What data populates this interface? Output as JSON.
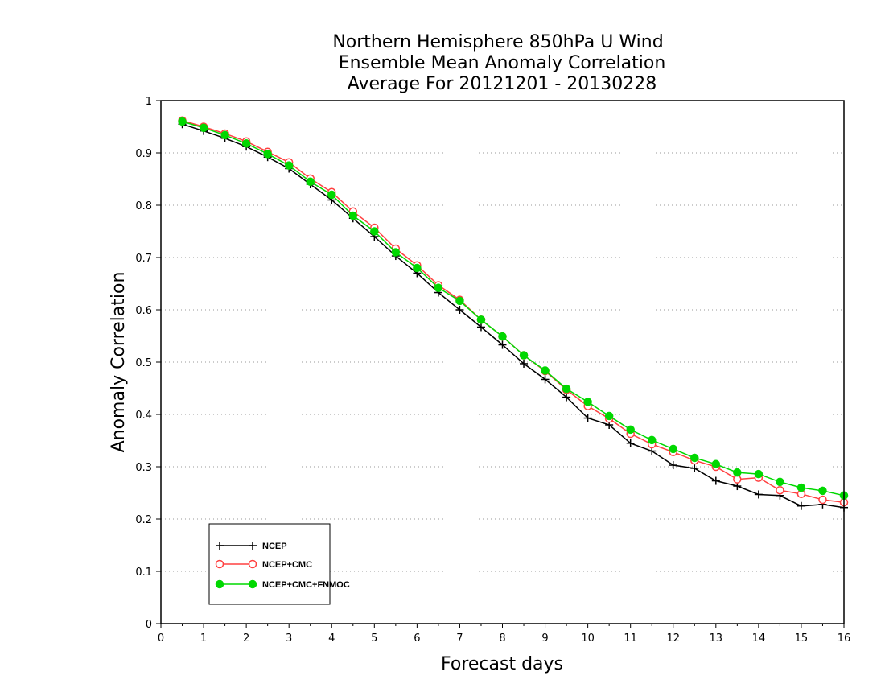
{
  "chart_data": {
    "type": "line",
    "title": [
      "Northern Hemisphere 850hPa U Wind",
      "Ensemble Mean Anomaly Correlation",
      "Average For 20121201 - 20130228"
    ],
    "xlabel": "Forecast days",
    "ylabel": "Anomaly Correlation",
    "xlim": [
      0,
      16
    ],
    "ylim": [
      0,
      1
    ],
    "x_ticks": [
      "0",
      "1",
      "2",
      "3",
      "4",
      "5",
      "6",
      "7",
      "8",
      "9",
      "10",
      "11",
      "12",
      "13",
      "14",
      "15",
      "16"
    ],
    "y_ticks": [
      "0",
      "0.1",
      "0.2",
      "0.3",
      "0.4",
      "0.5",
      "0.6",
      "0.7",
      "0.8",
      "0.9",
      "1"
    ],
    "grid": "horizontal-dotted",
    "legend_placement": "bottom-left",
    "x": [
      0.5,
      1,
      1.5,
      2,
      2.5,
      3,
      3.5,
      4,
      4.5,
      5,
      5.5,
      6,
      6.5,
      7,
      7.5,
      8,
      8.5,
      9,
      9.5,
      10,
      10.5,
      11,
      11.5,
      12,
      12.5,
      13,
      13.5,
      14,
      14.5,
      15,
      15.5,
      16
    ],
    "series": [
      {
        "name": "NCEP",
        "color": "#000000",
        "marker": "plus",
        "values": [
          0.955,
          0.942,
          0.928,
          0.912,
          0.892,
          0.87,
          0.84,
          0.81,
          0.775,
          0.74,
          0.703,
          0.67,
          0.633,
          0.6,
          0.567,
          0.533,
          0.497,
          0.467,
          0.433,
          0.393,
          0.38,
          0.345,
          0.33,
          0.303,
          0.297,
          0.273,
          0.263,
          0.247,
          0.245,
          0.225,
          0.228,
          0.222
        ]
      },
      {
        "name": "NCEP+CMC",
        "color": "#ff4040",
        "marker": "open-circle",
        "values": [
          0.962,
          0.95,
          0.937,
          0.922,
          0.902,
          0.882,
          0.851,
          0.825,
          0.788,
          0.757,
          0.717,
          0.685,
          0.647,
          0.619,
          0.581,
          0.549,
          0.513,
          0.483,
          0.447,
          0.416,
          0.392,
          0.363,
          0.343,
          0.328,
          0.312,
          0.3,
          0.276,
          0.279,
          0.255,
          0.248,
          0.237,
          0.232
        ]
      },
      {
        "name": "NCEP+CMC+FNMOC",
        "color": "#00d800",
        "marker": "filled-circle",
        "values": [
          0.96,
          0.948,
          0.934,
          0.918,
          0.898,
          0.876,
          0.845,
          0.82,
          0.78,
          0.75,
          0.71,
          0.68,
          0.642,
          0.617,
          0.581,
          0.549,
          0.513,
          0.484,
          0.449,
          0.424,
          0.397,
          0.371,
          0.351,
          0.334,
          0.317,
          0.305,
          0.289,
          0.286,
          0.271,
          0.26,
          0.254,
          0.245
        ]
      }
    ]
  }
}
